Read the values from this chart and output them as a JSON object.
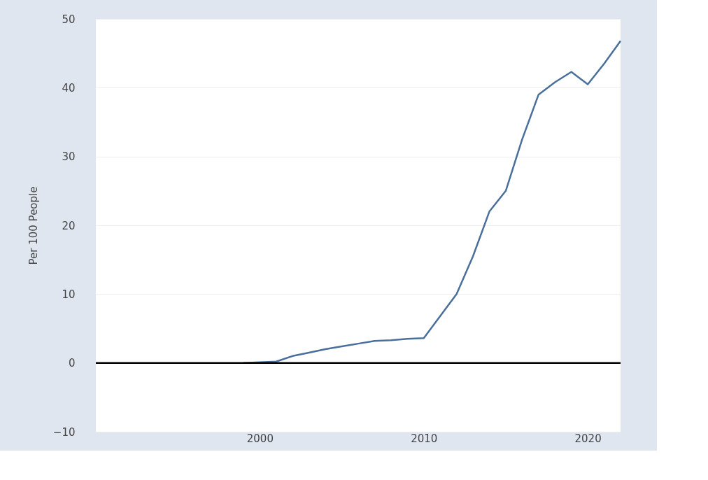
{
  "chart_data": {
    "type": "line",
    "ylabel": "Per 100 People",
    "x": [
      1999,
      2000,
      2001,
      2002,
      2003,
      2004,
      2005,
      2006,
      2007,
      2008,
      2009,
      2010,
      2011,
      2012,
      2013,
      2014,
      2015,
      2016,
      2017,
      2018,
      2019,
      2020,
      2021,
      2022
    ],
    "series": [
      {
        "color": "#4a6f9b",
        "values": [
          0,
          0.1,
          0.2,
          1.0,
          1.5,
          2.0,
          2.4,
          2.8,
          3.2,
          3.3,
          3.5,
          3.6,
          6.8,
          10,
          15.5,
          22,
          25,
          32.5,
          39,
          40.8,
          42.3,
          40.5,
          43.5,
          46.8
        ]
      }
    ],
    "xlim": [
      1990,
      2022
    ],
    "xticks": [
      2000,
      2010,
      2020
    ],
    "ylim": [
      -10,
      50
    ],
    "yticks": [
      -10,
      0,
      10,
      20,
      30,
      40,
      50
    ],
    "grid": "y",
    "legend": false,
    "marker": "none",
    "line_style": "solid",
    "ref_lines": [
      {
        "axis": "y",
        "value": 0,
        "color": "#000000"
      }
    ]
  }
}
